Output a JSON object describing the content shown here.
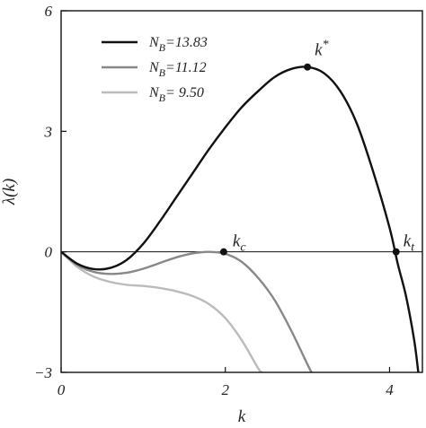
{
  "chart_data": {
    "type": "line",
    "xlabel": "k",
    "ylabel": "λ(k)",
    "xlim": [
      0,
      4.4
    ],
    "ylim": [
      -3,
      6
    ],
    "xticks": [
      0,
      2,
      4
    ],
    "xtick_labels": [
      "0",
      "2",
      "4"
    ],
    "yticks": [
      -3,
      0,
      3,
      6
    ],
    "ytick_labels": [
      "−3",
      "0",
      "3",
      "6"
    ],
    "legend_position": "top-left",
    "grid": false,
    "series": [
      {
        "name": "N_B=13.83",
        "legend_main": "N",
        "legend_sub": "B",
        "legend_value": "=13.83",
        "color": "#111111",
        "x": [
          0,
          0.2,
          0.4,
          0.6,
          0.8,
          1.0,
          1.2,
          1.4,
          1.6,
          1.8,
          2.0,
          2.2,
          2.4,
          2.6,
          2.8,
          3.0,
          3.2,
          3.4,
          3.6,
          3.8,
          4.0,
          4.1,
          4.2,
          4.3,
          4.35
        ],
        "y": [
          0,
          -0.3,
          -0.43,
          -0.4,
          -0.2,
          0.2,
          0.75,
          1.35,
          1.95,
          2.55,
          3.1,
          3.6,
          4.0,
          4.35,
          4.55,
          4.6,
          4.45,
          4.0,
          3.2,
          2.0,
          0.6,
          -0.3,
          -1.1,
          -2.2,
          -3.0
        ]
      },
      {
        "name": "N_B=11.12",
        "legend_main": "N",
        "legend_sub": "B",
        "legend_value": "=11.12",
        "color": "#888888",
        "x": [
          0,
          0.2,
          0.4,
          0.6,
          0.8,
          1.0,
          1.2,
          1.4,
          1.6,
          1.8,
          2.0,
          2.2,
          2.4,
          2.6,
          2.8,
          3.0,
          3.05
        ],
        "y": [
          0,
          -0.33,
          -0.5,
          -0.55,
          -0.52,
          -0.42,
          -0.28,
          -0.14,
          -0.04,
          0.0,
          -0.05,
          -0.25,
          -0.65,
          -1.2,
          -1.95,
          -2.8,
          -3.0
        ]
      },
      {
        "name": "N_B=9.50",
        "legend_main": "N",
        "legend_sub": "B",
        "legend_value": "= 9.50",
        "color": "#bbbbbb",
        "x": [
          0,
          0.2,
          0.4,
          0.6,
          0.8,
          1.0,
          1.2,
          1.4,
          1.6,
          1.8,
          2.0,
          2.2,
          2.4,
          2.45
        ],
        "y": [
          0,
          -0.38,
          -0.62,
          -0.75,
          -0.82,
          -0.85,
          -0.9,
          -0.98,
          -1.1,
          -1.3,
          -1.65,
          -2.2,
          -2.9,
          -3.0
        ]
      }
    ],
    "annotations": [
      {
        "label": "k",
        "sup": "*",
        "sub": "",
        "x": 3.0,
        "y": 4.6
      },
      {
        "label": "k",
        "sup": "",
        "sub": "c",
        "x": 1.98,
        "y": 0
      },
      {
        "label": "k",
        "sup": "",
        "sub": "t",
        "x": 4.08,
        "y": 0
      }
    ]
  }
}
